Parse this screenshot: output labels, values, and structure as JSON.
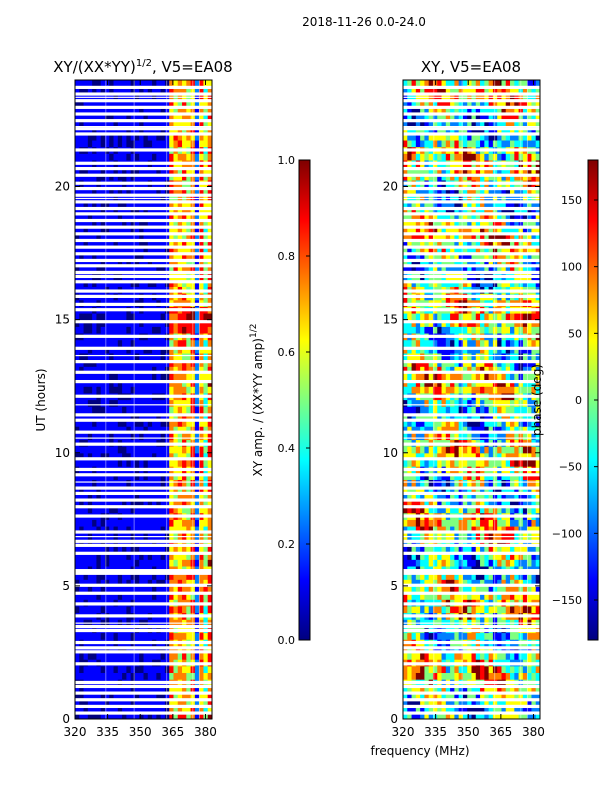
{
  "suptitle": "2018-11-26 0.0-24.0",
  "xlabel_shared": "frequency (MHz)",
  "colormap": [
    "#00007f",
    "#0000ff",
    "#007fff",
    "#00ffff",
    "#7fff7f",
    "#ffff00",
    "#ff7f00",
    "#ff0000",
    "#7f0000"
  ],
  "chart_data": [
    {
      "type": "heatmap",
      "title": "XY/(XX*YY)",
      "title_sup": "1/2",
      "title_suffix": ", V5=EA08",
      "ylabel": "UT (hours)",
      "xlim": [
        320,
        383
      ],
      "ylim": [
        0,
        24
      ],
      "xticks": [
        320,
        335,
        350,
        365,
        380
      ],
      "yticks": [
        0,
        5,
        10,
        15,
        20
      ],
      "colorbar": {
        "label": "XY amp. / (XX*YY amp)",
        "label_sup": "1/2",
        "range": [
          0.0,
          1.0
        ],
        "ticks": [
          "0.0",
          "0.2",
          "0.4",
          "0.6",
          "0.8",
          "1.0"
        ]
      },
      "gap_hours": [
        0.2,
        0.45,
        0.7,
        0.95,
        1.2,
        1.35,
        2.05,
        2.5,
        2.65,
        2.85,
        3.3,
        3.45,
        3.85,
        4.3,
        4.7,
        5.0,
        5.45,
        5.55,
        6.2,
        6.5,
        6.65,
        7.0,
        7.6,
        7.95,
        8.2,
        8.45,
        8.65,
        9.15,
        9.35,
        9.75,
        10.3,
        10.75,
        11.2,
        11.4,
        12.1,
        12.65,
        13.0,
        13.4,
        13.9,
        14.35,
        14.9,
        15.35,
        15.55,
        15.85,
        16.05,
        16.4,
        16.6,
        16.75,
        17.0,
        17.2,
        17.45,
        17.7,
        17.95,
        18.2,
        18.45,
        18.7,
        18.95,
        19.15,
        19.4,
        19.65,
        19.9,
        20.1,
        20.4,
        20.65,
        20.85,
        21.35,
        21.95,
        22.15,
        22.45,
        22.7,
        22.95,
        23.2,
        23.45,
        23.7
      ],
      "line_hours": [
        3.6,
        6.85,
        8.9,
        10.55,
        11.8,
        13.65,
        19.55,
        22.25,
        23.35
      ]
    },
    {
      "type": "heatmap",
      "title": "XY, V5=EA08",
      "ylabel": "",
      "xlim": [
        320,
        383
      ],
      "ylim": [
        0,
        24
      ],
      "xticks": [
        320,
        335,
        350,
        365,
        380
      ],
      "yticks": [
        0,
        5,
        10,
        15,
        20
      ],
      "colorbar": {
        "label": "phase (deg)",
        "range": [
          -180,
          180
        ],
        "ticks": [
          "−150",
          "−100",
          "−50",
          "0",
          "50",
          "100",
          "150"
        ]
      },
      "gap_hours": [
        0.2,
        0.45,
        0.7,
        0.95,
        1.2,
        1.35,
        2.05,
        2.5,
        2.65,
        2.85,
        3.3,
        3.45,
        3.85,
        4.3,
        4.7,
        5.0,
        5.45,
        5.55,
        6.2,
        6.5,
        6.65,
        7.0,
        7.6,
        7.95,
        8.2,
        8.45,
        8.65,
        9.15,
        9.35,
        9.75,
        10.3,
        10.75,
        11.2,
        11.4,
        12.1,
        12.65,
        13.0,
        13.4,
        13.9,
        14.35,
        14.9,
        15.35,
        15.55,
        15.85,
        16.05,
        16.4,
        16.6,
        16.75,
        17.0,
        17.2,
        17.45,
        17.7,
        17.95,
        18.2,
        18.45,
        18.7,
        18.95,
        19.15,
        19.4,
        19.65,
        19.9,
        20.1,
        20.4,
        20.65,
        20.85,
        21.35,
        21.95,
        22.15,
        22.45,
        22.7,
        22.95,
        23.2,
        23.45,
        23.7
      ],
      "line_hours": [
        3.6,
        6.85,
        8.9,
        10.55,
        11.8,
        13.65,
        19.55,
        22.25,
        23.35
      ]
    }
  ]
}
